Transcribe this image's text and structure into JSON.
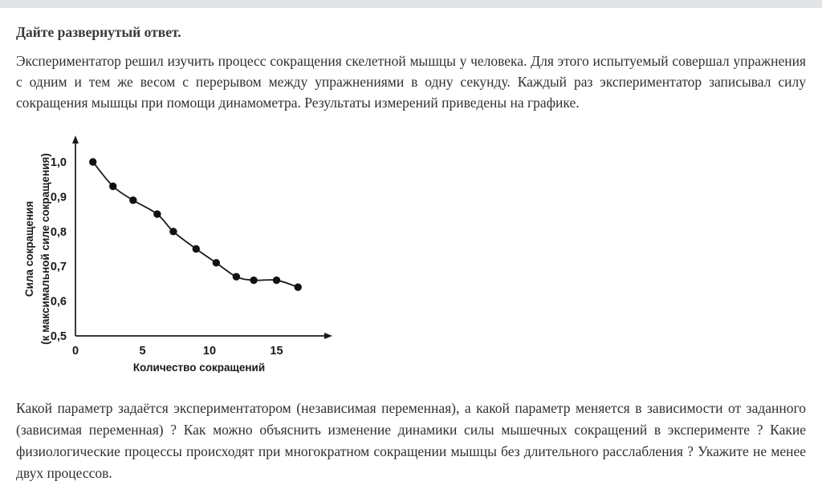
{
  "page": {
    "heading": "Дайте развернутый ответ.",
    "intro": "Экспериментатор решил изучить процесс сокращения скелетной мышцы у человека. Для этого испытуемый совершал упражнения с одним и тем же весом с перерывом между упражнениями в одну секунду. Каждый раз экспериментатор записывал силу сокращения мышцы при помощи динамометра. Результаты измерений приведены на графике.",
    "question": "Какой параметр задаётся экспериментатором (независимая переменная), а какой параметр меняется в зависимости от заданного (зависимая переменная) ? Как можно объяснить изменение динамики силы мышечных сокращений в эксперименте ? Какие физиологические процессы происходят при многократном сокращении мышцы без длительного расслабления ? Укажите не менее двух процессов."
  },
  "chart_data": {
    "type": "line",
    "x": [
      1.3,
      2.8,
      4.3,
      6.1,
      7.3,
      9.0,
      10.5,
      12.0,
      13.3,
      15.0,
      16.6
    ],
    "y": [
      1.0,
      0.93,
      0.89,
      0.85,
      0.8,
      0.75,
      0.71,
      0.67,
      0.66,
      0.66,
      0.64
    ],
    "xlabel": "Количество сокращений",
    "ylabel_line1": "Сила сокращения",
    "ylabel_line2": "(к максимальной силе сокращения)",
    "x_ticks": [
      0,
      5,
      10,
      15
    ],
    "y_ticks": [
      1.0,
      0.9,
      0.8,
      0.7,
      0.6,
      0.5
    ],
    "y_tick_labels": [
      "1,0",
      "0,9",
      "0,8",
      "0,7",
      "0,6",
      "0,5"
    ],
    "xlim": [
      0,
      18.5
    ],
    "ylim": [
      0.5,
      1.07
    ],
    "grid": false,
    "legend": "none",
    "line_color": "#1a1a1a",
    "point_color": "#111111"
  },
  "colors": {
    "top_bar": "#e1e4e5",
    "text": "#303030"
  }
}
